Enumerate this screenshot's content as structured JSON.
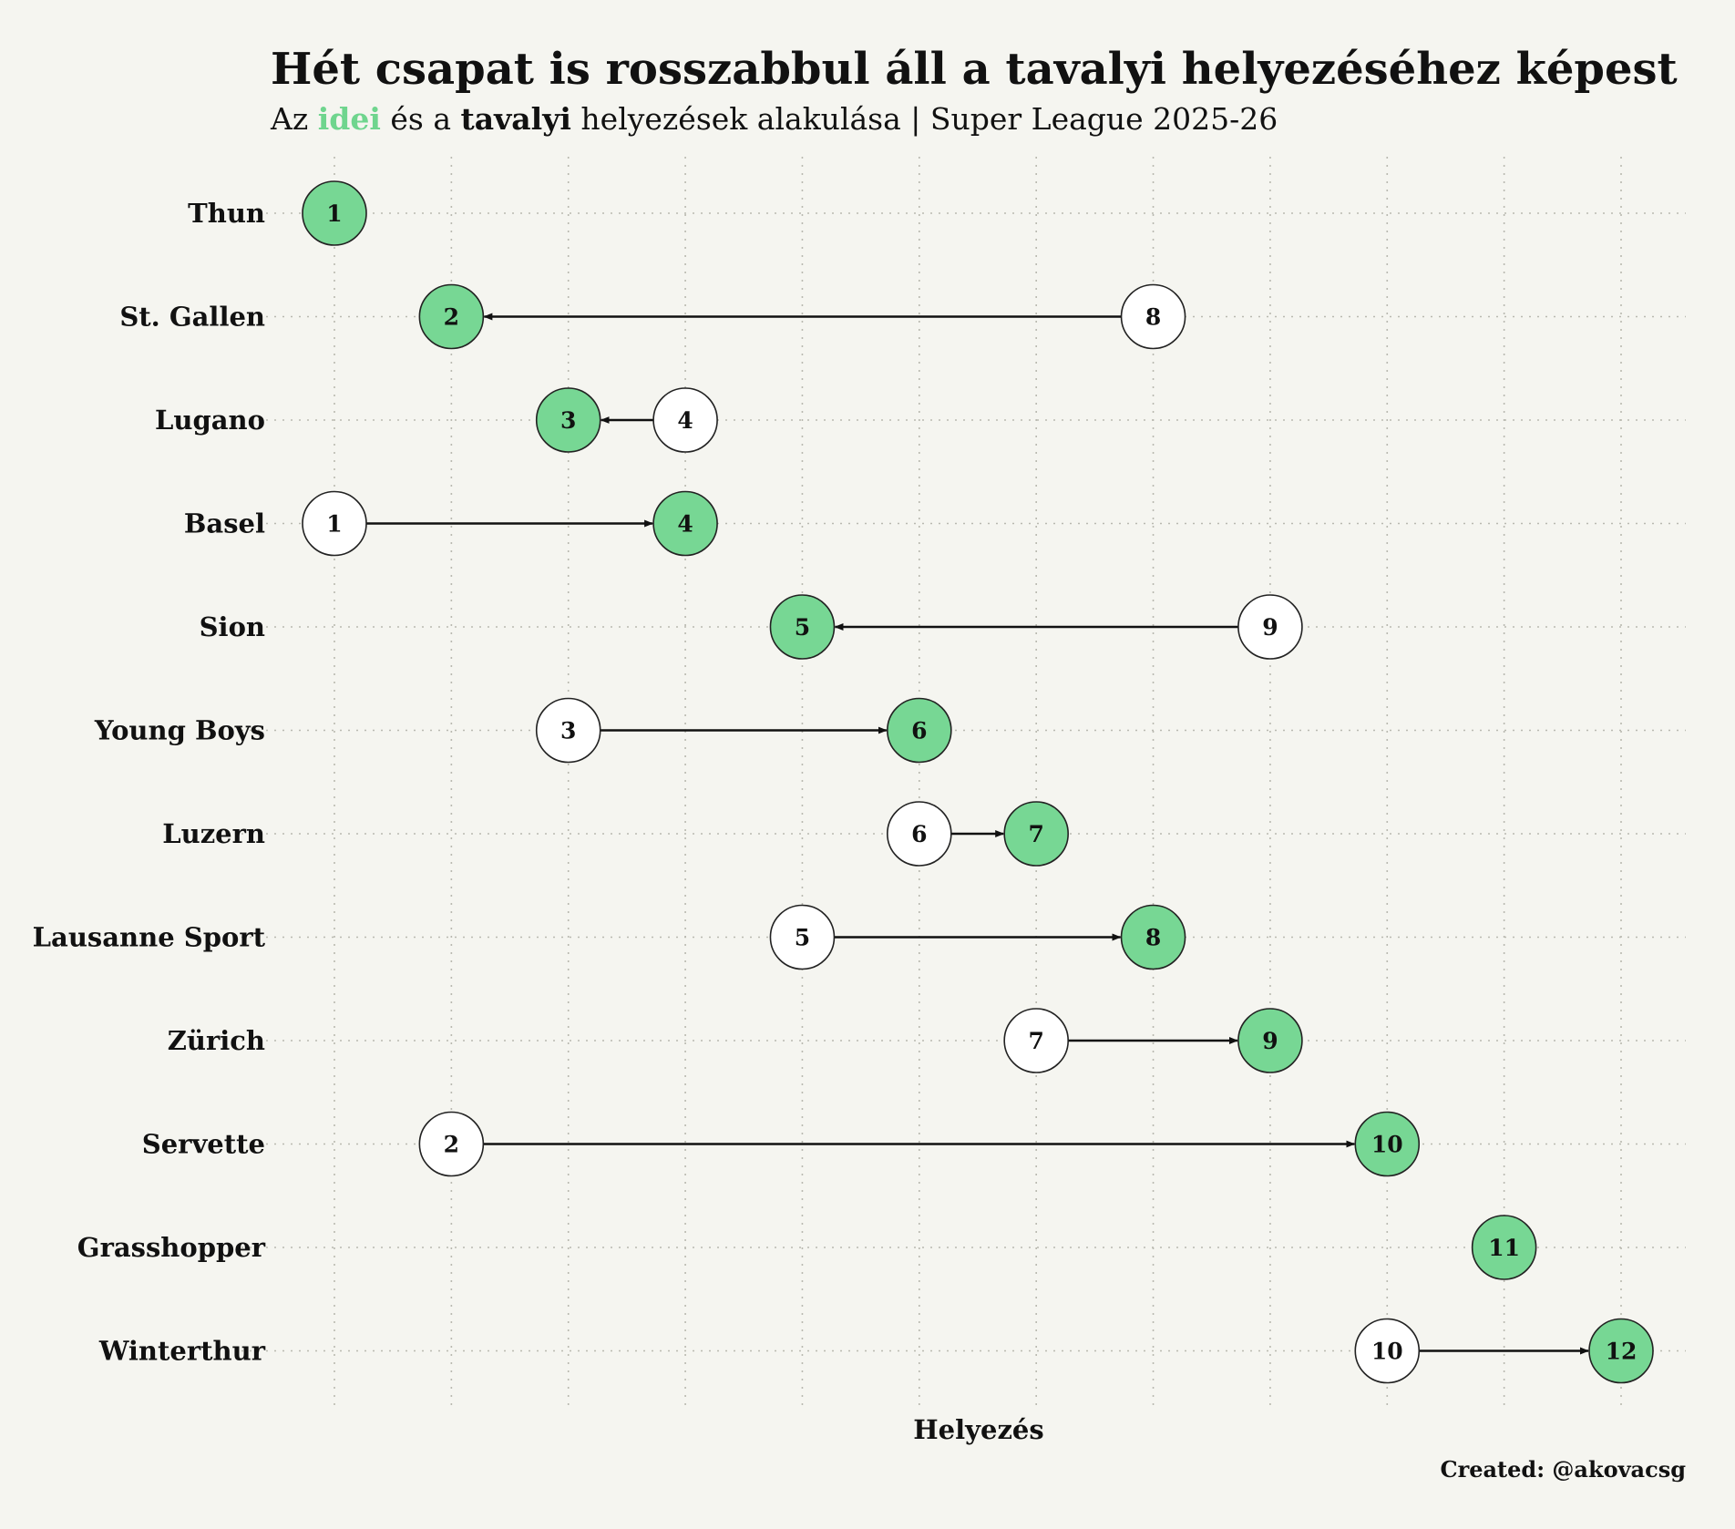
{
  "chart_data": {
    "type": "dumbbell",
    "title": "Hét csapat is rosszabbul áll a tavalyi helyezéséhez képest",
    "subtitle": {
      "prefix": "Az ",
      "current_word": "idei",
      "middle": " és a ",
      "previous_word": "tavalyi",
      "suffix": " helyezések alakulása | Super League 2025-26"
    },
    "xlabel": "Helyezés",
    "credit": "Created: @akovacsg",
    "xlim": [
      1,
      12
    ],
    "grid": true,
    "colors": {
      "current": "#77d794",
      "previous": "#ffffff",
      "stroke": "#222222",
      "background": "#f5f5f0"
    },
    "teams": [
      {
        "name": "Thun",
        "current": 1,
        "previous": null
      },
      {
        "name": "St. Gallen",
        "current": 2,
        "previous": 8
      },
      {
        "name": "Lugano",
        "current": 3,
        "previous": 4
      },
      {
        "name": "Basel",
        "current": 4,
        "previous": 1
      },
      {
        "name": "Sion",
        "current": 5,
        "previous": 9
      },
      {
        "name": "Young Boys",
        "current": 6,
        "previous": 3
      },
      {
        "name": "Luzern",
        "current": 7,
        "previous": 6
      },
      {
        "name": "Lausanne Sport",
        "current": 8,
        "previous": 5
      },
      {
        "name": "Zürich",
        "current": 9,
        "previous": 7
      },
      {
        "name": "Servette",
        "current": 10,
        "previous": 2
      },
      {
        "name": "Grasshopper",
        "current": 11,
        "previous": null
      },
      {
        "name": "Winterthur",
        "current": 12,
        "previous": 10
      }
    ]
  }
}
